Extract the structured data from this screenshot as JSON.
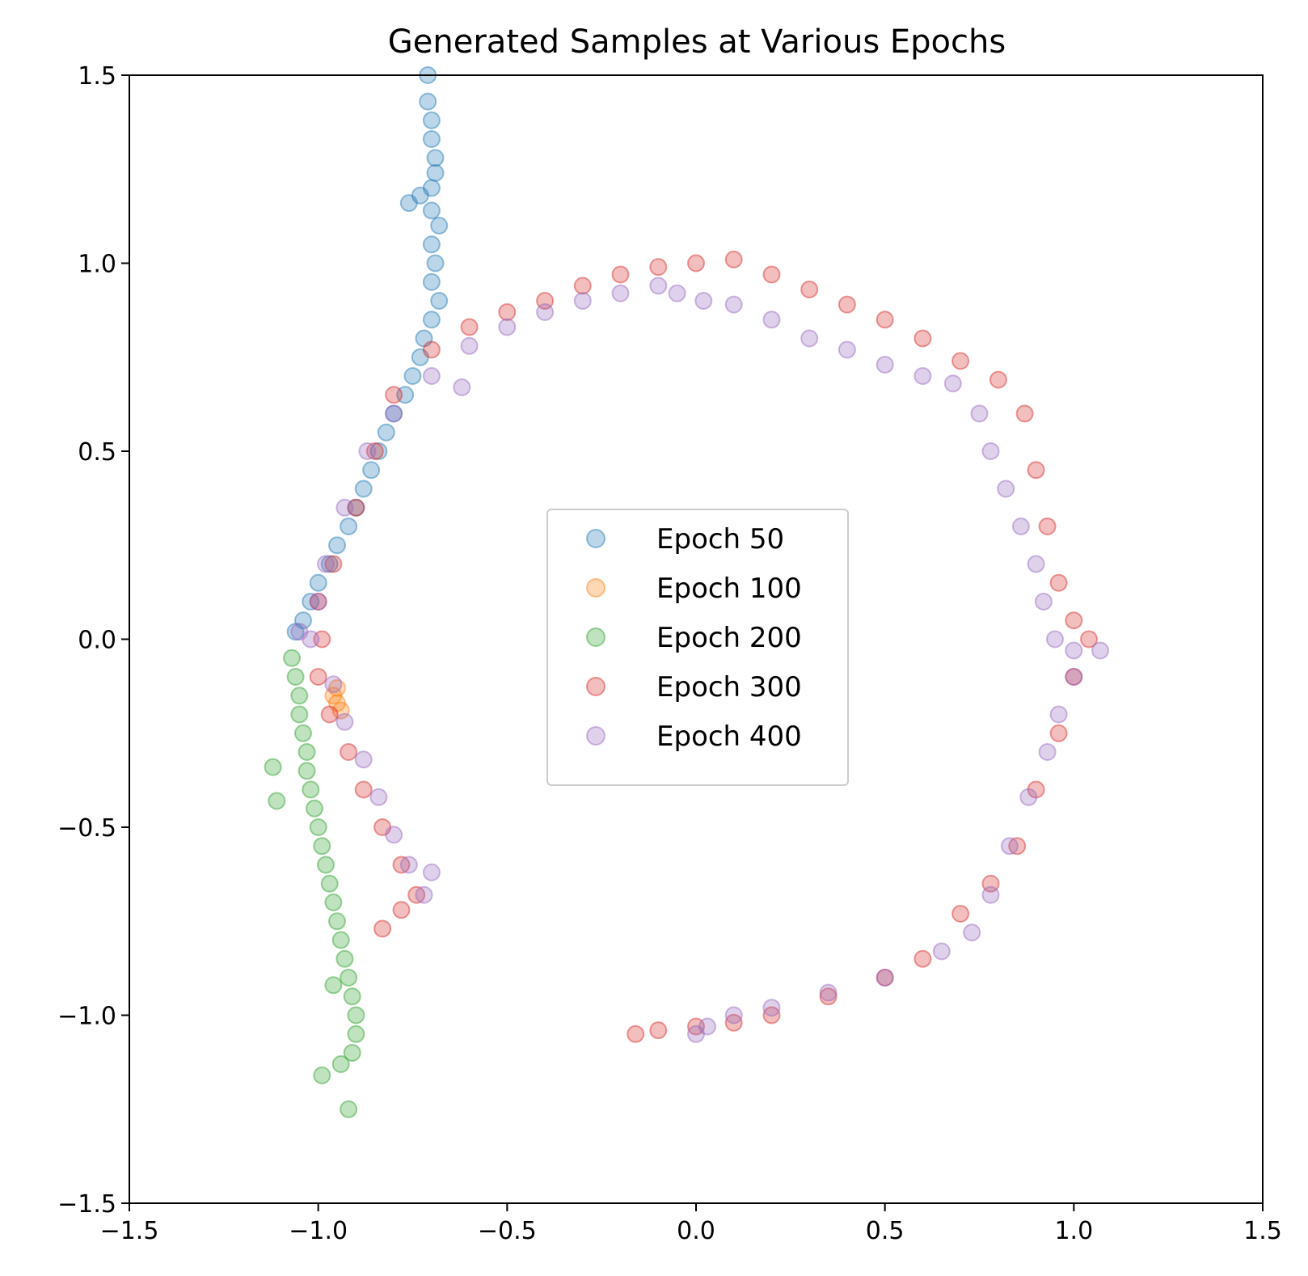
{
  "chart_data": {
    "type": "scatter",
    "title": "Generated Samples at Various Epochs",
    "xlabel": "",
    "ylabel": "",
    "xlim": [
      -1.5,
      1.5
    ],
    "ylim": [
      -1.5,
      1.5
    ],
    "xticks": [
      -1.5,
      -1.0,
      -0.5,
      0.0,
      0.5,
      1.0,
      1.5
    ],
    "yticks": [
      -1.5,
      -1.0,
      -0.5,
      0.0,
      0.5,
      1.0,
      1.5
    ],
    "xtick_labels": [
      "−1.5",
      "−1.0",
      "−0.5",
      "0.0",
      "0.5",
      "1.0",
      "1.5"
    ],
    "ytick_labels": [
      "−1.5",
      "−1.0",
      "−0.5",
      "0.0",
      "0.5",
      "1.0",
      "1.5"
    ],
    "grid": false,
    "legend_position": "center",
    "marker_alpha": 0.3,
    "series": [
      {
        "name": "Epoch 50",
        "color": "#1f77b4",
        "points": [
          [
            -0.71,
            1.5
          ],
          [
            -0.71,
            1.43
          ],
          [
            -0.7,
            1.38
          ],
          [
            -0.7,
            1.33
          ],
          [
            -0.69,
            1.28
          ],
          [
            -0.69,
            1.24
          ],
          [
            -0.7,
            1.2
          ],
          [
            -0.73,
            1.18
          ],
          [
            -0.76,
            1.16
          ],
          [
            -0.7,
            1.14
          ],
          [
            -0.68,
            1.1
          ],
          [
            -0.7,
            1.05
          ],
          [
            -0.69,
            1.0
          ],
          [
            -0.7,
            0.95
          ],
          [
            -0.68,
            0.9
          ],
          [
            -0.7,
            0.85
          ],
          [
            -0.72,
            0.8
          ],
          [
            -0.73,
            0.75
          ],
          [
            -0.75,
            0.7
          ],
          [
            -0.77,
            0.65
          ],
          [
            -0.8,
            0.6
          ],
          [
            -0.82,
            0.55
          ],
          [
            -0.84,
            0.5
          ],
          [
            -0.86,
            0.45
          ],
          [
            -0.88,
            0.4
          ],
          [
            -0.9,
            0.35
          ],
          [
            -0.92,
            0.3
          ],
          [
            -0.95,
            0.25
          ],
          [
            -0.97,
            0.2
          ],
          [
            -1.0,
            0.15
          ],
          [
            -1.02,
            0.1
          ],
          [
            -1.04,
            0.05
          ],
          [
            -1.06,
            0.02
          ]
        ]
      },
      {
        "name": "Epoch 100",
        "color": "#ff7f0e",
        "points": [
          [
            -0.96,
            -0.15
          ],
          [
            -0.95,
            -0.17
          ],
          [
            -0.94,
            -0.19
          ],
          [
            -0.95,
            -0.13
          ]
        ]
      },
      {
        "name": "Epoch 200",
        "color": "#2ca02c",
        "points": [
          [
            -1.07,
            -0.05
          ],
          [
            -1.06,
            -0.1
          ],
          [
            -1.05,
            -0.15
          ],
          [
            -1.05,
            -0.2
          ],
          [
            -1.04,
            -0.25
          ],
          [
            -1.03,
            -0.3
          ],
          [
            -1.12,
            -0.34
          ],
          [
            -1.03,
            -0.35
          ],
          [
            -1.02,
            -0.4
          ],
          [
            -1.11,
            -0.43
          ],
          [
            -1.01,
            -0.45
          ],
          [
            -1.0,
            -0.5
          ],
          [
            -0.99,
            -0.55
          ],
          [
            -0.98,
            -0.6
          ],
          [
            -0.97,
            -0.65
          ],
          [
            -0.96,
            -0.7
          ],
          [
            -0.95,
            -0.75
          ],
          [
            -0.94,
            -0.8
          ],
          [
            -0.93,
            -0.85
          ],
          [
            -0.92,
            -0.9
          ],
          [
            -0.96,
            -0.92
          ],
          [
            -0.91,
            -0.95
          ],
          [
            -0.9,
            -1.0
          ],
          [
            -0.9,
            -1.05
          ],
          [
            -0.91,
            -1.1
          ],
          [
            -0.94,
            -1.13
          ],
          [
            -0.99,
            -1.16
          ],
          [
            -0.92,
            -1.25
          ]
        ]
      },
      {
        "name": "Epoch 300",
        "color": "#d62728",
        "points": [
          [
            -0.99,
            0.0
          ],
          [
            -1.0,
            -0.1
          ],
          [
            -0.97,
            -0.2
          ],
          [
            -0.92,
            -0.3
          ],
          [
            -0.88,
            -0.4
          ],
          [
            -0.83,
            -0.5
          ],
          [
            -0.78,
            -0.6
          ],
          [
            -0.74,
            -0.68
          ],
          [
            -0.78,
            -0.72
          ],
          [
            -0.83,
            -0.77
          ],
          [
            -1.0,
            0.1
          ],
          [
            -0.96,
            0.2
          ],
          [
            -0.9,
            0.35
          ],
          [
            -0.85,
            0.5
          ],
          [
            -0.8,
            0.65
          ],
          [
            -0.7,
            0.77
          ],
          [
            -0.6,
            0.83
          ],
          [
            -0.5,
            0.87
          ],
          [
            -0.4,
            0.9
          ],
          [
            -0.3,
            0.94
          ],
          [
            -0.2,
            0.97
          ],
          [
            -0.1,
            0.99
          ],
          [
            0.0,
            1.0
          ],
          [
            0.1,
            1.01
          ],
          [
            0.2,
            0.97
          ],
          [
            0.3,
            0.93
          ],
          [
            0.4,
            0.89
          ],
          [
            0.5,
            0.85
          ],
          [
            0.6,
            0.8
          ],
          [
            0.7,
            0.74
          ],
          [
            0.8,
            0.69
          ],
          [
            0.87,
            0.6
          ],
          [
            0.9,
            0.45
          ],
          [
            0.93,
            0.3
          ],
          [
            0.96,
            0.15
          ],
          [
            1.0,
            0.05
          ],
          [
            1.04,
            0.0
          ],
          [
            1.0,
            -0.1
          ],
          [
            0.96,
            -0.25
          ],
          [
            0.9,
            -0.4
          ],
          [
            0.85,
            -0.55
          ],
          [
            0.78,
            -0.65
          ],
          [
            0.7,
            -0.73
          ],
          [
            0.6,
            -0.85
          ],
          [
            0.5,
            -0.9
          ],
          [
            0.35,
            -0.95
          ],
          [
            0.2,
            -1.0
          ],
          [
            0.1,
            -1.02
          ],
          [
            0.0,
            -1.03
          ],
          [
            -0.1,
            -1.04
          ],
          [
            -0.16,
            -1.05
          ]
        ]
      },
      {
        "name": "Epoch 400",
        "color": "#9467bd",
        "points": [
          [
            -1.05,
            0.02
          ],
          [
            -1.02,
            0.0
          ],
          [
            -1.0,
            0.1
          ],
          [
            -0.98,
            0.2
          ],
          [
            -0.93,
            0.35
          ],
          [
            -0.87,
            0.5
          ],
          [
            -0.8,
            0.6
          ],
          [
            -0.7,
            0.7
          ],
          [
            -0.62,
            0.67
          ],
          [
            -0.6,
            0.78
          ],
          [
            -0.5,
            0.83
          ],
          [
            -0.4,
            0.87
          ],
          [
            -0.3,
            0.9
          ],
          [
            -0.2,
            0.92
          ],
          [
            -0.1,
            0.94
          ],
          [
            -0.05,
            0.92
          ],
          [
            0.02,
            0.9
          ],
          [
            0.1,
            0.89
          ],
          [
            0.2,
            0.85
          ],
          [
            0.3,
            0.8
          ],
          [
            0.4,
            0.77
          ],
          [
            0.5,
            0.73
          ],
          [
            0.6,
            0.7
          ],
          [
            0.68,
            0.68
          ],
          [
            0.75,
            0.6
          ],
          [
            0.78,
            0.5
          ],
          [
            0.82,
            0.4
          ],
          [
            0.86,
            0.3
          ],
          [
            0.9,
            0.2
          ],
          [
            0.92,
            0.1
          ],
          [
            0.95,
            0.0
          ],
          [
            1.0,
            -0.03
          ],
          [
            1.07,
            -0.03
          ],
          [
            1.0,
            -0.1
          ],
          [
            0.96,
            -0.2
          ],
          [
            0.93,
            -0.3
          ],
          [
            0.88,
            -0.42
          ],
          [
            0.83,
            -0.55
          ],
          [
            0.78,
            -0.68
          ],
          [
            0.73,
            -0.78
          ],
          [
            0.65,
            -0.83
          ],
          [
            0.5,
            -0.9
          ],
          [
            0.35,
            -0.94
          ],
          [
            0.2,
            -0.98
          ],
          [
            0.1,
            -1.0
          ],
          [
            0.03,
            -1.03
          ],
          [
            0.0,
            -1.05
          ],
          [
            -0.96,
            -0.12
          ],
          [
            -0.93,
            -0.22
          ],
          [
            -0.88,
            -0.32
          ],
          [
            -0.84,
            -0.42
          ],
          [
            -0.8,
            -0.52
          ],
          [
            -0.76,
            -0.6
          ],
          [
            -0.72,
            -0.68
          ],
          [
            -0.7,
            -0.62
          ]
        ]
      }
    ]
  }
}
